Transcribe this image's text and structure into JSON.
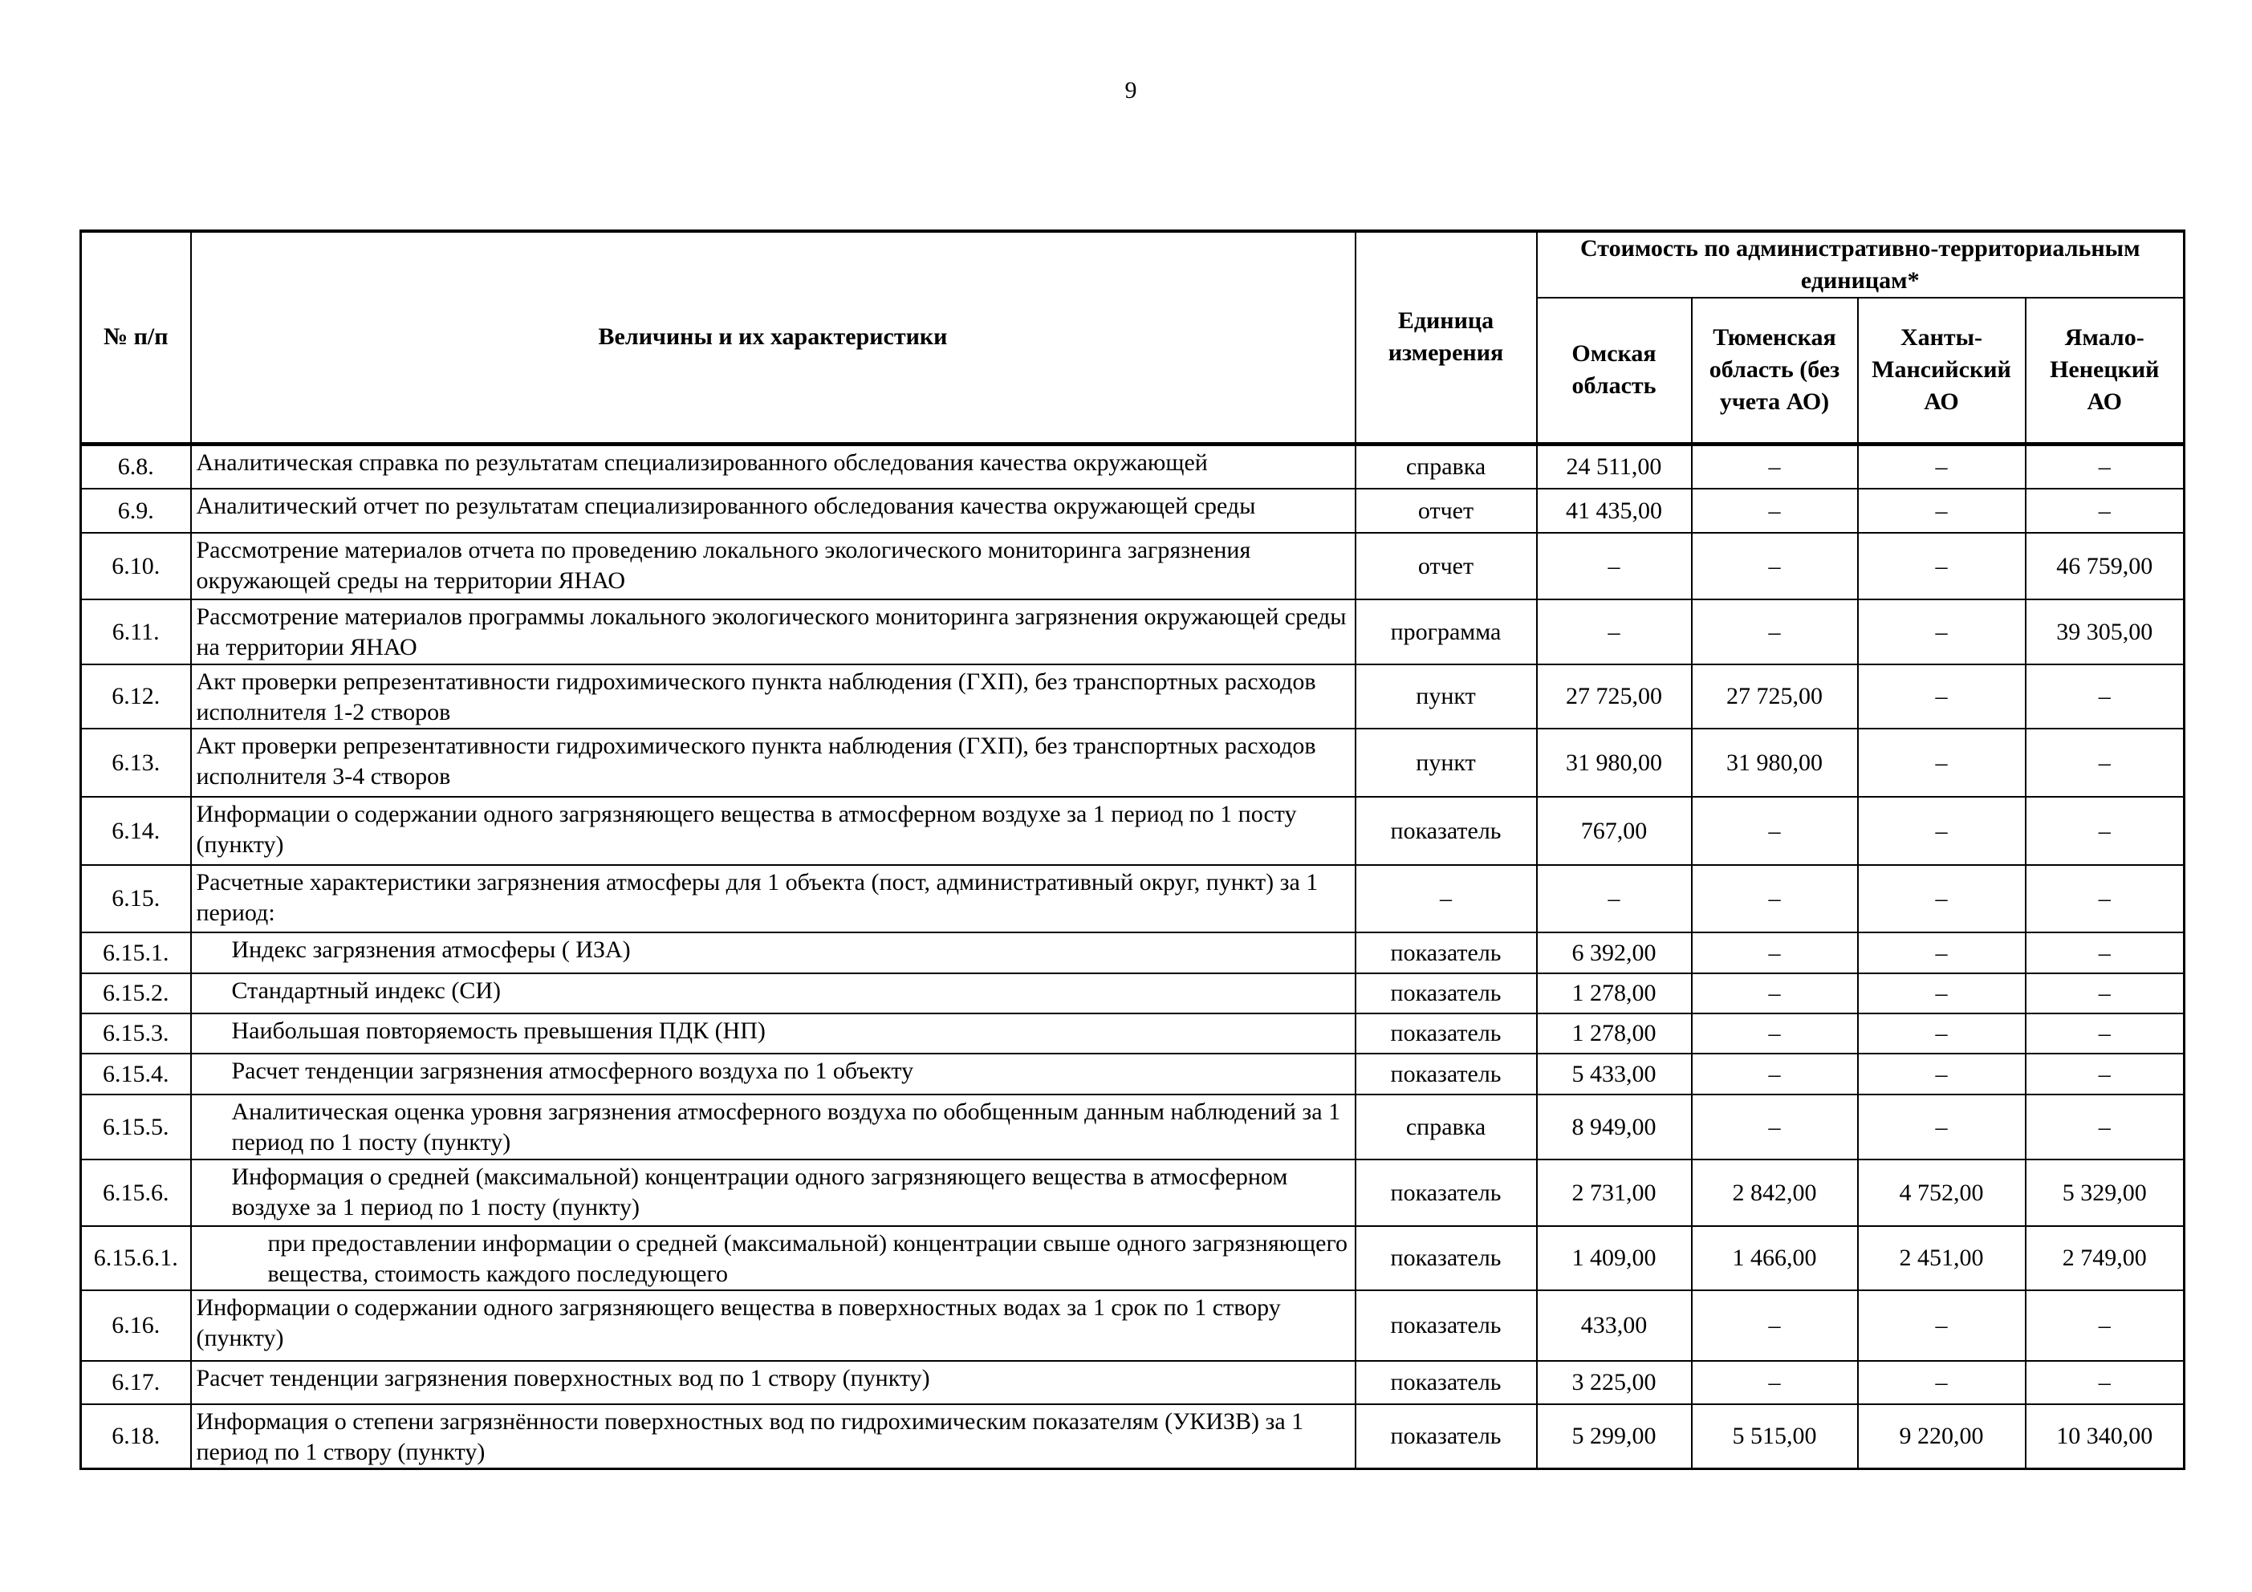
{
  "page_number": "9",
  "header": {
    "num": "№ п/п",
    "name": "Величины и их характеристики",
    "unit": "Единица измерения",
    "cost_group": "Стоимость по административно-территориальным единицам*",
    "regions": [
      "Омская область",
      "Тюменская область (без учета АО)",
      "Ханты-Мансийский АО",
      "Ямало-Ненецкий АО"
    ]
  },
  "rows": [
    {
      "num": "6.8.",
      "name": "Аналитическая справка по результатам специализированного обследования качества окружающей",
      "unit": "справка",
      "v": [
        "24 511,00",
        "–",
        "–",
        "–"
      ],
      "indent": 0
    },
    {
      "num": "6.9.",
      "name": "Аналитический отчет по результатам специализированного обследования качества окружающей среды",
      "unit": "отчет",
      "v": [
        "41 435,00",
        "–",
        "–",
        "–"
      ],
      "indent": 0
    },
    {
      "num": "6.10.",
      "name": "Рассмотрение материалов отчета по проведению локального экологического мониторинга загрязнения окружающей среды на территории ЯНАО",
      "unit": "отчет",
      "v": [
        "–",
        "–",
        "–",
        "46 759,00"
      ],
      "indent": 0
    },
    {
      "num": "6.11.",
      "name": "Рассмотрение материалов программы локального экологического мониторинга загрязнения окружающей среды на территории ЯНАО",
      "unit": "программа",
      "v": [
        "–",
        "–",
        "–",
        "39 305,00"
      ],
      "indent": 0
    },
    {
      "num": "6.12.",
      "name": "Акт проверки репрезентативности гидрохимического пункта наблюдения (ГХП), без транспортных расходов исполнителя 1-2 створов",
      "unit": "пункт",
      "v": [
        "27 725,00",
        "27 725,00",
        "–",
        "–"
      ],
      "indent": 0
    },
    {
      "num": "6.13.",
      "name": "Акт проверки репрезентативности гидрохимического пункта наблюдения (ГХП), без транспортных расходов исполнителя 3-4 створов",
      "unit": "пункт",
      "v": [
        "31 980,00",
        "31 980,00",
        "–",
        "–"
      ],
      "indent": 0
    },
    {
      "num": "6.14.",
      "name": "Информации о содержании одного загрязняющего вещества в атмосферном воздухе за 1 период по 1 посту (пункту)",
      "unit": "показатель",
      "v": [
        "767,00",
        "–",
        "–",
        "–"
      ],
      "indent": 0
    },
    {
      "num": "6.15.",
      "name": "Расчетные характеристики загрязнения атмосферы для 1 объекта (пост, административный округ, пункт) за 1 период:",
      "unit": "–",
      "v": [
        "–",
        "–",
        "–",
        "–"
      ],
      "indent": 0
    },
    {
      "num": "6.15.1.",
      "name": "Индекс загрязнения атмосферы ( ИЗА)",
      "unit": "показатель",
      "v": [
        "6 392,00",
        "–",
        "–",
        "–"
      ],
      "indent": 1
    },
    {
      "num": "6.15.2.",
      "name": "Стандартный индекс (СИ)",
      "unit": "показатель",
      "v": [
        "1 278,00",
        "–",
        "–",
        "–"
      ],
      "indent": 1
    },
    {
      "num": "6.15.3.",
      "name": "Наибольшая повторяемость превышения ПДК (НП)",
      "unit": "показатель",
      "v": [
        "1 278,00",
        "–",
        "–",
        "–"
      ],
      "indent": 1
    },
    {
      "num": "6.15.4.",
      "name": "Расчет тенденции загрязнения атмосферного воздуха по 1 объекту",
      "unit": "показатель",
      "v": [
        "5 433,00",
        "–",
        "–",
        "–"
      ],
      "indent": 1
    },
    {
      "num": "6.15.5.",
      "name": "Аналитическая оценка уровня загрязнения атмосферного воздуха по обобщенным данным наблюдений за 1 период по 1 посту (пункту)",
      "unit": "справка",
      "v": [
        "8 949,00",
        "–",
        "–",
        "–"
      ],
      "indent": 1
    },
    {
      "num": "6.15.6.",
      "name": "Информация о средней (максимальной)  концентрации одного загрязняющего вещества в атмосферном воздухе за 1 период по 1 посту (пункту)",
      "unit": "показатель",
      "v": [
        "2 731,00",
        "2 842,00",
        "4 752,00",
        "5 329,00"
      ],
      "indent": 1
    },
    {
      "num": "6.15.6.1.",
      "name": "при  предоставлении информации о средней (максимальной)  концентрации свыше одного загрязняющего вещества, стоимость каждого последующего",
      "unit": "показатель",
      "v": [
        "1 409,00",
        "1 466,00",
        "2 451,00",
        "2 749,00"
      ],
      "indent": 2
    },
    {
      "num": "6.16.",
      "name": "Информации о содержании одного загрязняющего вещества в поверхностных водах за 1 срок по 1 створу (пункту)",
      "unit": "показатель",
      "v": [
        "433,00",
        "–",
        "–",
        "–"
      ],
      "indent": 0
    },
    {
      "num": "6.17.",
      "name": "Расчет тенденции загрязнения поверхностных вод  по 1 створу (пункту)",
      "unit": "показатель",
      "v": [
        "3 225,00",
        "–",
        "–",
        "–"
      ],
      "indent": 0
    },
    {
      "num": "6.18.",
      "name": "Информация о степени загрязнённости поверхностных вод по гидрохимическим показателям (УКИЗВ) за 1 период по 1 створу (пункту)",
      "unit": "показатель",
      "v": [
        "5 299,00",
        "5 515,00",
        "9 220,00",
        "10 340,00"
      ],
      "indent": 0
    }
  ]
}
